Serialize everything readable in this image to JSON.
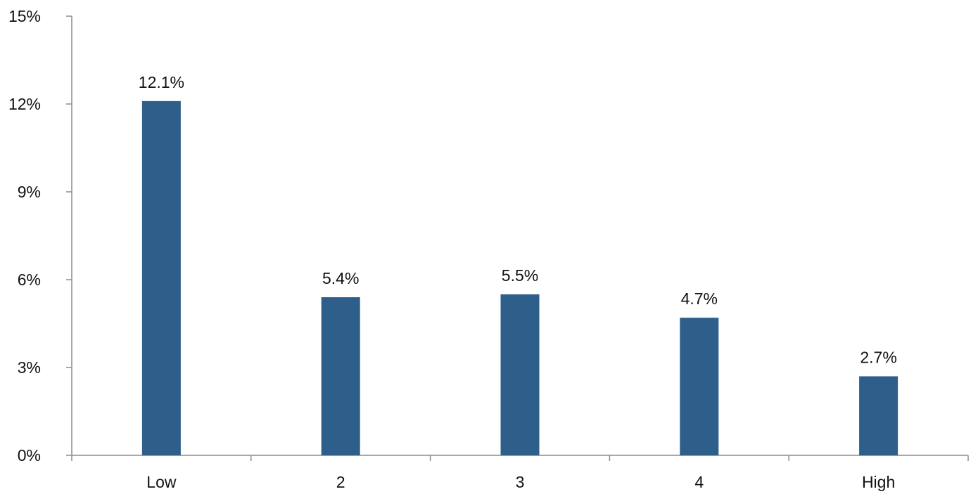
{
  "chart_data": {
    "type": "bar",
    "categories": [
      "Low",
      "2",
      "3",
      "4",
      "High"
    ],
    "values": [
      12.1,
      5.4,
      5.5,
      4.7,
      2.7
    ],
    "data_labels": [
      "12.1%",
      "5.4%",
      "5.5%",
      "4.7%",
      "2.7%"
    ],
    "y_ticks": [
      0,
      3,
      6,
      9,
      12,
      15
    ],
    "y_tick_labels": [
      "0%",
      "3%",
      "6%",
      "9%",
      "12%",
      "15%"
    ],
    "ylim": [
      0,
      15
    ],
    "grid": false,
    "bar_color": "#2e5f8a",
    "axis_color": "#8c8c8c"
  }
}
